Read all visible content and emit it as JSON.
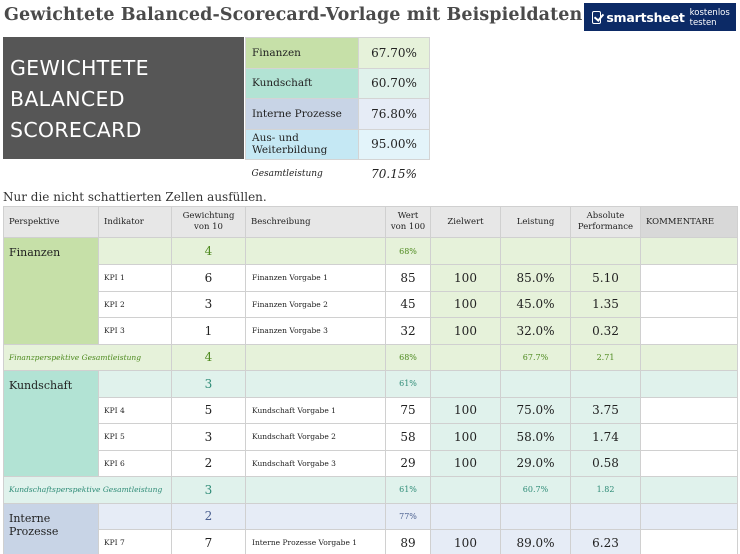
{
  "title": "Gewichtete Balanced-Scorecard-Vorlage mit Beispieldaten für Excel",
  "logo": {
    "brand": "smartsheet",
    "tagline": "kostenlos testen",
    "icon": "check-icon"
  },
  "big_box": {
    "lines": [
      "GEWICHTETE",
      "BALANCED",
      "SCORECARD"
    ]
  },
  "summary": {
    "rows": [
      {
        "label": "Finanzen",
        "value": "67.70%",
        "color": "#c6e0a8",
        "value_color": "#e6f2da"
      },
      {
        "label": "Kundschaft",
        "value": "60.70%",
        "color": "#b2e3d4",
        "value_color": "#e0f2ec"
      },
      {
        "label": "Interne Prozesse",
        "value": "76.80%",
        "color": "#c8d4e6",
        "value_color": "#e6ecf6"
      },
      {
        "label": "Aus- und Weiterbildung",
        "value": "95.00%",
        "color": "#c5e8f4",
        "value_color": "#e3f4fa"
      }
    ],
    "total": {
      "label": "Gesamtleistung",
      "value": "70.15%"
    }
  },
  "note": "Nur die nicht schattierten Zellen ausfüllen.",
  "table": {
    "headers": {
      "perspektive": "Perspektive",
      "indikator": "Indikator",
      "gewichtung_1": "Gewichtung",
      "gewichtung_2": "von 10",
      "beschreibung": "Beschreibung",
      "wert_1": "Wert",
      "wert_2": "von 100",
      "zielwert": "Zielwert",
      "leistung": "Leistung",
      "absolut_1": "Absolute",
      "absolut_2": "Performance",
      "kommentare": "KOMMENTARE"
    },
    "sections": {
      "finanzen": {
        "name": "Finanzen",
        "weight": "4",
        "wert": "68%",
        "kpis": [
          {
            "kpi": "KPI 1",
            "weight": "6",
            "desc": "Finanzen Vorgabe 1",
            "wert": "85",
            "ziel": "100",
            "leistung": "85.0%",
            "abs": "5.10"
          },
          {
            "kpi": "KPI 2",
            "weight": "3",
            "desc": "Finanzen Vorgabe 2",
            "wert": "45",
            "ziel": "100",
            "leistung": "45.0%",
            "abs": "1.35"
          },
          {
            "kpi": "KPI 3",
            "weight": "1",
            "desc": "Finanzen Vorgabe 3",
            "wert": "32",
            "ziel": "100",
            "leistung": "32.0%",
            "abs": "0.32"
          }
        ],
        "summary": {
          "label": "Finanzperspektive Gesamtleistung",
          "weight": "4",
          "wert": "68%",
          "leistung": "67.7%",
          "abs": "2.71"
        }
      },
      "kundschaft": {
        "name": "Kundschaft",
        "weight": "3",
        "wert": "61%",
        "kpis": [
          {
            "kpi": "KPI 4",
            "weight": "5",
            "desc": "Kundschaft Vorgabe 1",
            "wert": "75",
            "ziel": "100",
            "leistung": "75.0%",
            "abs": "3.75"
          },
          {
            "kpi": "KPI 5",
            "weight": "3",
            "desc": "Kundschaft Vorgabe 2",
            "wert": "58",
            "ziel": "100",
            "leistung": "58.0%",
            "abs": "1.74"
          },
          {
            "kpi": "KPI 6",
            "weight": "2",
            "desc": "Kundschaft Vorgabe 3",
            "wert": "29",
            "ziel": "100",
            "leistung": "29.0%",
            "abs": "0.58"
          }
        ],
        "summary": {
          "label": "Kundschaftsperspektive Gesamtleistung",
          "weight": "3",
          "wert": "61%",
          "leistung": "60.7%",
          "abs": "1.82"
        }
      },
      "interne": {
        "name": "Interne Prozesse",
        "weight": "2",
        "wert": "77%",
        "kpis": [
          {
            "kpi": "KPI 7",
            "weight": "7",
            "desc": "Interne Prozesse Vorgabe 1",
            "wert": "89",
            "ziel": "100",
            "leistung": "89.0%",
            "abs": "6.23"
          }
        ]
      }
    }
  }
}
